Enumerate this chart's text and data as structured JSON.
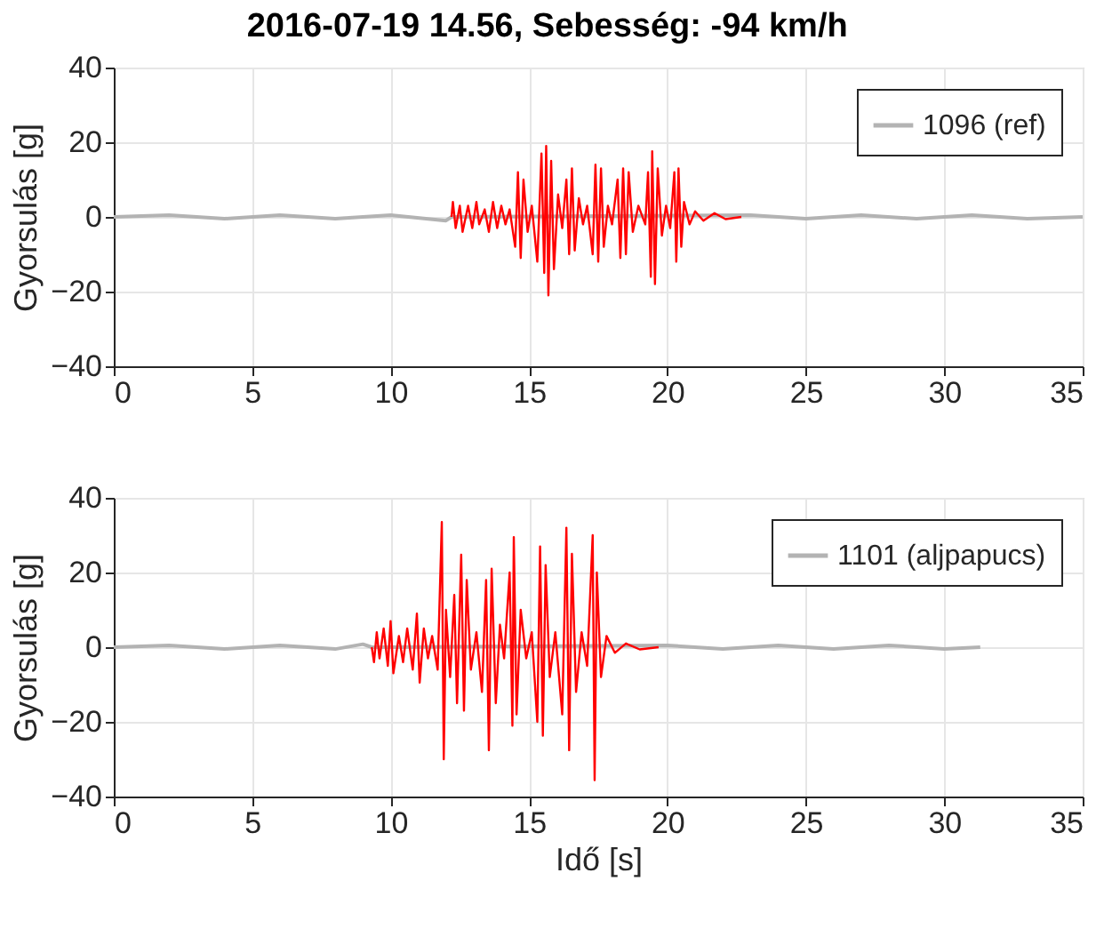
{
  "chart_data": [
    {
      "type": "line",
      "title": "2016-07-19 14.56, Sebesség: -94 km/h",
      "ylabel": "Gyorsulás [g]",
      "xlim": [
        0,
        35
      ],
      "xticks": [
        0,
        5,
        10,
        15,
        20,
        25,
        30,
        35
      ],
      "ylim": [
        -40,
        40
      ],
      "yticks": [
        -40,
        -20,
        0,
        20,
        40
      ],
      "grid": true,
      "legend": "top right",
      "series": [
        {
          "name": "1096 (ref)",
          "color": "#b3b3b3",
          "x": [
            0,
            2,
            4,
            6,
            8,
            10,
            12,
            12.2,
            23,
            25,
            27,
            29,
            31,
            33,
            35
          ],
          "values": [
            0,
            0.5,
            -0.5,
            0.5,
            -0.5,
            0.5,
            -1,
            0,
            0.5,
            -0.5,
            0.5,
            -0.5,
            0.5,
            -0.5,
            0
          ]
        },
        {
          "color": "#ff0000",
          "x": [
            12.2,
            12.25,
            12.35,
            12.5,
            12.6,
            12.8,
            12.95,
            13.1,
            13.2,
            13.4,
            13.55,
            13.7,
            13.85,
            14.0,
            14.15,
            14.3,
            14.5,
            14.6,
            14.7,
            14.8,
            14.95,
            15.1,
            15.3,
            15.45,
            15.55,
            15.62,
            15.7,
            15.8,
            15.9,
            16.05,
            16.2,
            16.35,
            16.45,
            16.55,
            16.65,
            16.8,
            16.95,
            17.1,
            17.3,
            17.4,
            17.5,
            17.6,
            17.7,
            17.85,
            18.0,
            18.2,
            18.3,
            18.4,
            18.5,
            18.6,
            18.75,
            18.95,
            19.2,
            19.3,
            19.4,
            19.45,
            19.55,
            19.65,
            19.8,
            19.95,
            20.1,
            20.25,
            20.32,
            20.4,
            20.5,
            20.6,
            20.8,
            21.0,
            21.3,
            21.7,
            22.1,
            22.67
          ],
          "values": [
            0,
            4,
            -3,
            3,
            -4,
            3,
            -3,
            4,
            -2,
            2,
            -4,
            4,
            -3,
            3,
            -2,
            2,
            -8,
            12,
            -11,
            10,
            -4,
            3,
            -12,
            17,
            -15,
            19,
            -21,
            15,
            -14,
            6,
            -3,
            10,
            -10,
            13,
            -9,
            5,
            -2,
            3,
            -10,
            14,
            -12,
            13,
            -8,
            3,
            -2,
            10,
            -11,
            13,
            -10,
            12,
            -4,
            3,
            -2,
            12,
            -16,
            17.6,
            -18,
            13,
            -5,
            3,
            -3,
            12,
            -12,
            13,
            -8,
            4,
            -2,
            1.5,
            -1,
            1,
            -0.6,
            0
          ]
        }
      ]
    },
    {
      "type": "line",
      "xlabel": "Idő [s]",
      "ylabel": "Gyorsulás [g]",
      "xlim": [
        0,
        35
      ],
      "xticks": [
        0,
        5,
        10,
        15,
        20,
        25,
        30,
        35
      ],
      "ylim": [
        -40,
        40
      ],
      "yticks": [
        -40,
        -20,
        0,
        20,
        40
      ],
      "grid": true,
      "legend": "top right",
      "series": [
        {
          "name": "1101 (aljpapucs)",
          "color": "#b3b3b3",
          "x": [
            0,
            2,
            4,
            6,
            8,
            9,
            9.32,
            20,
            22,
            24,
            26,
            28,
            30,
            31.3
          ],
          "values": [
            0,
            0.5,
            -0.5,
            0.5,
            -0.5,
            0.8,
            0,
            0.5,
            -0.5,
            0.5,
            -0.5,
            0.5,
            -0.5,
            0
          ]
        },
        {
          "color": "#ff0000",
          "x": [
            9.32,
            9.4,
            9.5,
            9.6,
            9.75,
            9.9,
            10.0,
            10.1,
            10.3,
            10.45,
            10.6,
            10.8,
            10.95,
            11.05,
            11.2,
            11.35,
            11.5,
            11.7,
            11.85,
            11.92,
            12.0,
            12.15,
            12.3,
            12.4,
            12.55,
            12.65,
            12.75,
            12.9,
            13.1,
            13.3,
            13.45,
            13.55,
            13.65,
            13.8,
            13.95,
            14.1,
            14.3,
            14.4,
            14.45,
            14.55,
            14.7,
            14.9,
            15.1,
            15.3,
            15.4,
            15.5,
            15.6,
            15.75,
            15.95,
            16.2,
            16.35,
            16.45,
            16.55,
            16.7,
            16.9,
            17.1,
            17.3,
            17.37,
            17.45,
            17.6,
            17.8,
            18.1,
            18.5,
            19.0,
            19.68
          ],
          "values": [
            0,
            -4,
            4,
            -3,
            5,
            -5,
            7,
            -7,
            3,
            -4,
            5,
            -6,
            9,
            -9.5,
            5,
            -3,
            3,
            -6,
            33.5,
            -30,
            10,
            -8,
            14,
            -15,
            24.8,
            -17,
            18,
            -6,
            4,
            -12,
            18,
            -27.6,
            21,
            -15,
            6,
            -3,
            20,
            -21,
            29.5,
            -18,
            10,
            -3,
            4,
            -20,
            27,
            -23.7,
            22,
            -8,
            4,
            -18,
            32,
            -27.6,
            25,
            -12,
            4,
            -5,
            30,
            -35.6,
            20,
            -8,
            3,
            -1.5,
            1,
            -0.6,
            0
          ]
        }
      ]
    }
  ]
}
